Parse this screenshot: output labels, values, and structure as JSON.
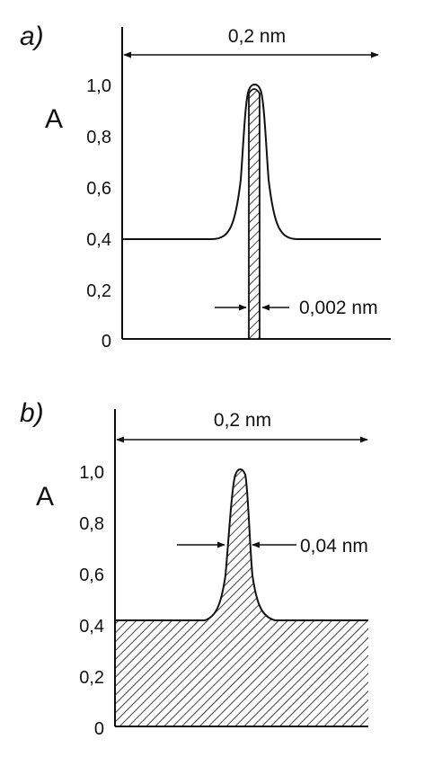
{
  "panels": [
    {
      "label": "a)",
      "axis_title": "A",
      "ticks": [
        "1,0",
        "0,8",
        "0,6",
        "0,4",
        "0,2",
        "0"
      ],
      "span_label": "0,2 nm",
      "width_label": "0,002 nm"
    },
    {
      "label": "b)",
      "axis_title": "A",
      "ticks": [
        "1,0",
        "0,8",
        "0,6",
        "0,4",
        "0,2",
        "0"
      ],
      "span_label": "0,2 nm",
      "width_label": "0,04 nm"
    }
  ]
}
